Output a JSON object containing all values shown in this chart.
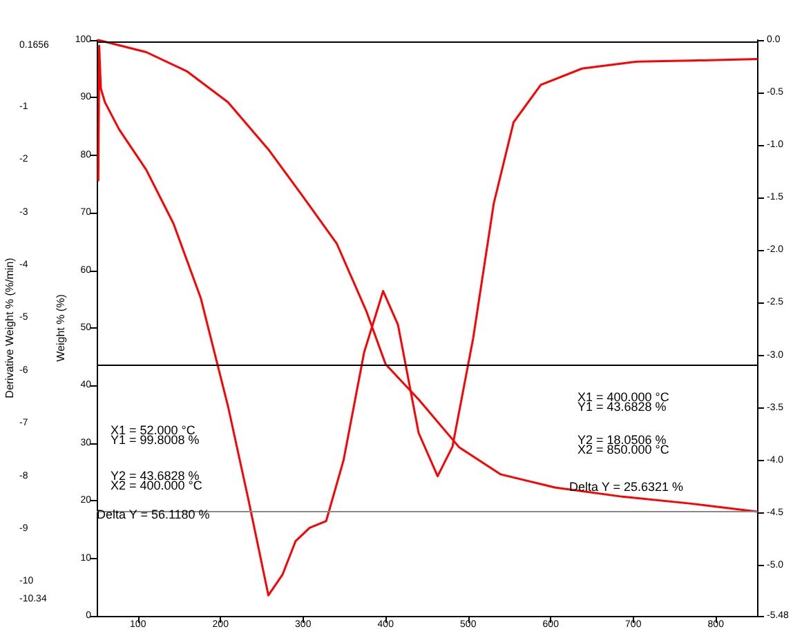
{
  "chart_data": {
    "type": "line",
    "xlim": [
      50,
      850
    ],
    "xticks": [
      100,
      200,
      300,
      400,
      500,
      600,
      700,
      800
    ],
    "ylabel": "Weight % (%)",
    "y2label": "Derivative Weight % (%/min)",
    "ylim": [
      0,
      100
    ],
    "yticks": [
      0,
      10,
      20,
      30,
      40,
      50,
      60,
      70,
      80,
      90,
      100
    ],
    "y2lim": [
      -10.65,
      0.27
    ],
    "y2ticks": [
      0.1656,
      -1,
      -2,
      -3,
      -4,
      -5,
      -6,
      -7,
      -8,
      -9,
      -10,
      -10.34
    ],
    "y3lim": [
      -5.48,
      0
    ],
    "y3ticks": [
      {
        "value": 0,
        "label": "0.0"
      },
      -0.5,
      {
        "value": -1,
        "label": "-1.0"
      },
      -1.5,
      {
        "value": -2,
        "label": "-2.0"
      },
      -2.5,
      {
        "value": -3,
        "label": "-3.0"
      },
      -3.5,
      {
        "value": -4,
        "label": "-4.0"
      },
      -4.5,
      {
        "value": -5,
        "label": "-5.0"
      },
      -5.48
    ],
    "grid": false,
    "marker": "none",
    "line_style": "solid",
    "series": [
      {
        "color": "#ff0000",
        "x": [
          52,
          110,
          159,
          209,
          258,
          300,
          341,
          377,
          400,
          440,
          489,
          539,
          605,
          687,
          770,
          850
        ],
        "values": [
          100,
          97.9,
          94.6,
          89.2,
          81.0,
          72.8,
          64.6,
          52.8,
          43.7,
          37.6,
          29.3,
          24.6,
          22.3,
          20.7,
          19.5,
          18.1
        ]
      },
      {
        "color": "#ff0000",
        "axis": "y2",
        "x": [
          52,
          53,
          55,
          60,
          77,
          110,
          143,
          176,
          209,
          234,
          258,
          275,
          291,
          308,
          328,
          349,
          374,
          397,
          415,
          440,
          463,
          481,
          506,
          531,
          555,
          588,
          638,
          704,
          770,
          850
        ],
        "values": [
          -2.39,
          0.16,
          -0.65,
          -0.91,
          -1.42,
          -2.19,
          -3.21,
          -4.62,
          -6.67,
          -8.46,
          -10.26,
          -9.87,
          -9.23,
          -8.98,
          -8.85,
          -7.7,
          -5.65,
          -4.49,
          -5.13,
          -7.18,
          -8.0,
          -7.44,
          -5.39,
          -2.83,
          -1.29,
          -0.58,
          -0.27,
          -0.14,
          -0.12,
          -0.09
        ]
      }
    ],
    "ref_lines": [
      {
        "axis": "y",
        "value": 99.8008,
        "color": "#000000"
      },
      {
        "axis": "y",
        "value": 43.6828,
        "color": "#000000"
      },
      {
        "axis": "y",
        "value": 18.0506,
        "color": "#888888"
      }
    ],
    "annotations": [
      "X1 = 52.000 °C",
      "Y1 = 99.8008 %",
      "Y2 = 43.6828 %",
      "X2 = 400.000 °C",
      "Delta Y = 56.1180 %",
      "X1 = 400.000 °C",
      "Y1 = 43.6828 %",
      "Y2 = 18.0506 %",
      "X2 = 850.000 °C",
      "Delta Y = 25.6321 %"
    ]
  }
}
